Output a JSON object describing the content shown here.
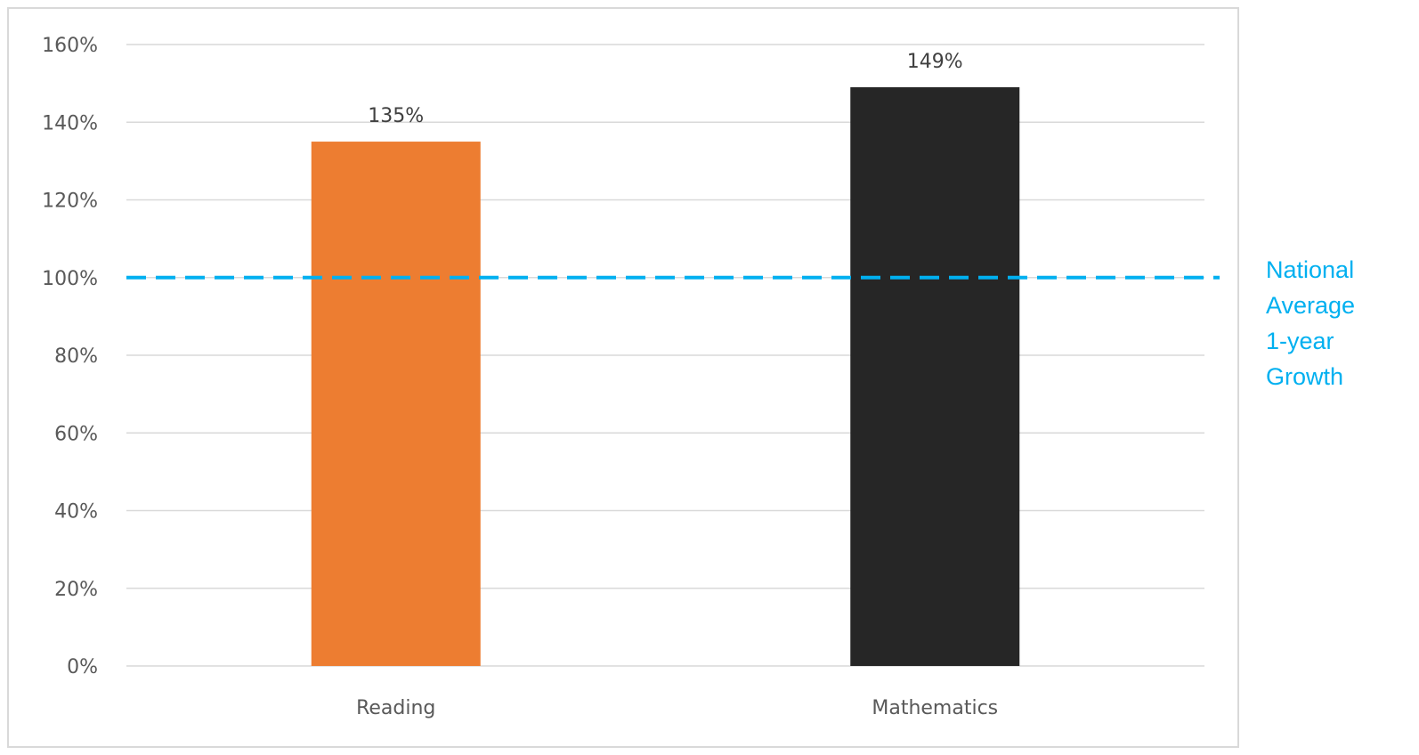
{
  "chart_data": {
    "type": "bar",
    "categories": [
      "Reading",
      "Mathematics"
    ],
    "values": [
      135,
      149
    ],
    "data_labels": [
      "135%",
      "149%"
    ],
    "bar_colors": [
      "#ed7d31",
      "#262626"
    ],
    "ylim": [
      0,
      160
    ],
    "y_ticks": [
      0,
      20,
      40,
      60,
      80,
      100,
      120,
      140,
      160
    ],
    "y_tick_labels": [
      "0%",
      "20%",
      "40%",
      "60%",
      "80%",
      "100%",
      "120%",
      "140%",
      "160%"
    ],
    "grid": true,
    "title": "",
    "xlabel": "",
    "ylabel": "",
    "reference_line": {
      "value": 100,
      "style": "dashed",
      "color": "#00b0f0",
      "label_lines": [
        "National",
        "Average",
        "1-year",
        "Growth"
      ]
    }
  }
}
